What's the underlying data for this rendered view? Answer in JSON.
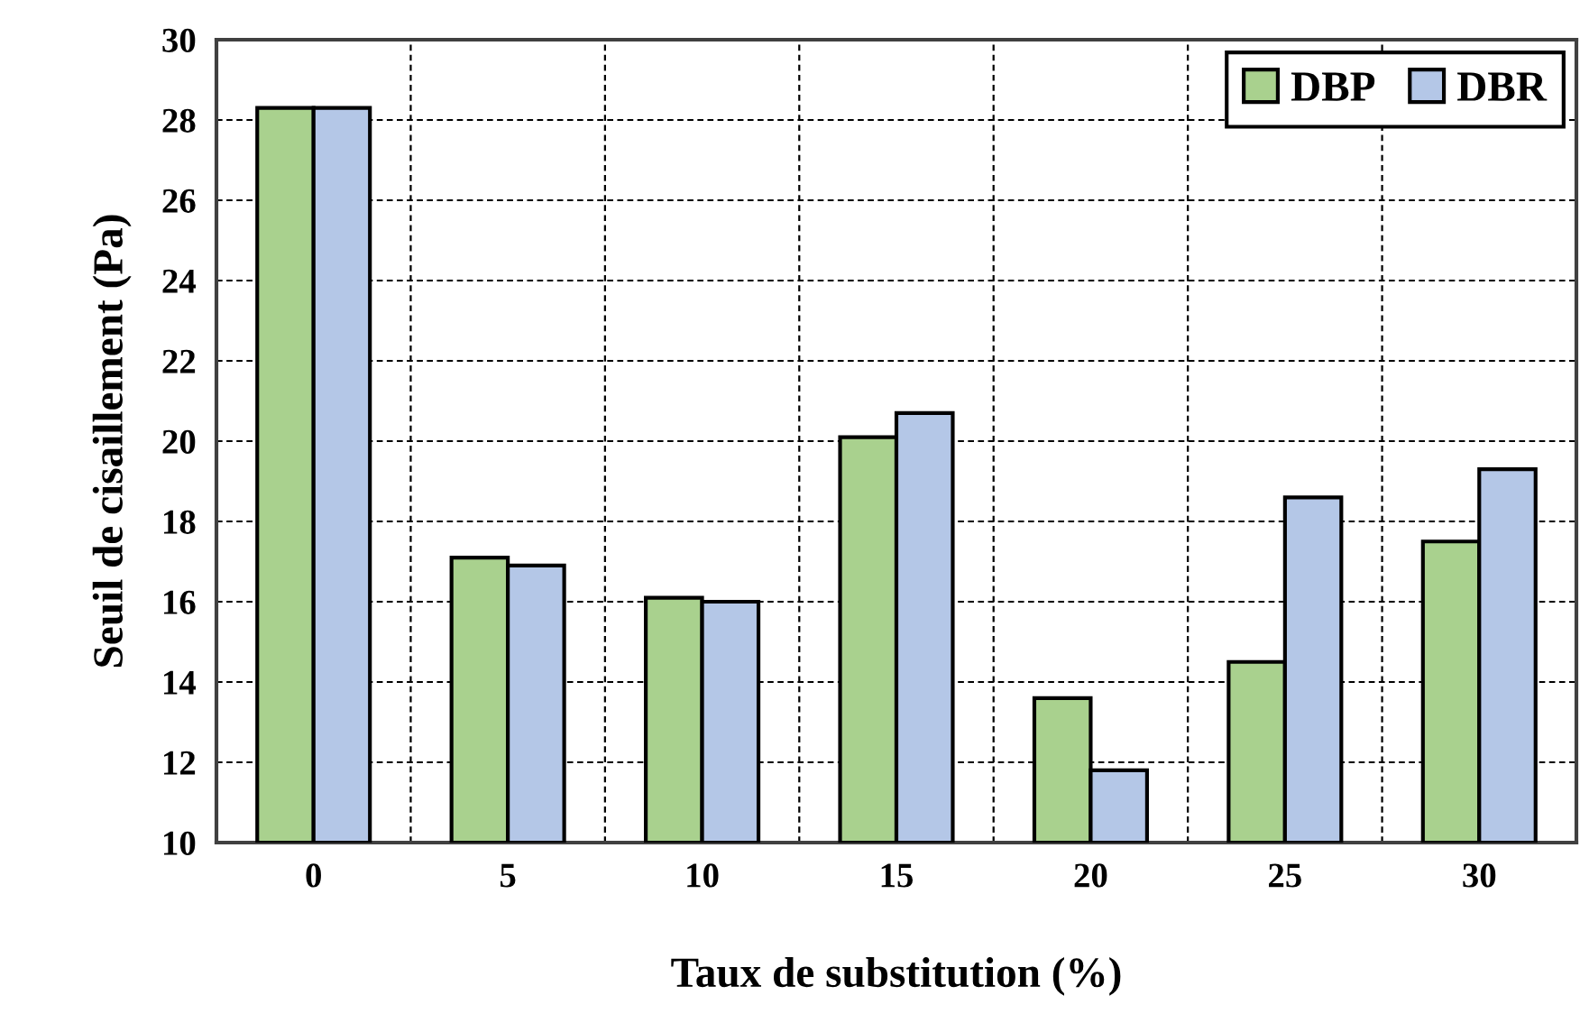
{
  "chart_data": {
    "type": "bar",
    "xlabel": "Taux de substitution (%)",
    "ylabel": "Seuil de cisaillement (Pa)",
    "categories": [
      "0",
      "5",
      "10",
      "15",
      "20",
      "25",
      "30"
    ],
    "series": [
      {
        "name": "DBP",
        "color": "#a9d18e",
        "values": [
          28.3,
          17.1,
          16.1,
          20.1,
          13.6,
          14.5,
          17.5
        ]
      },
      {
        "name": "DBR",
        "color": "#b4c7e7",
        "values": [
          28.3,
          16.9,
          16.0,
          20.7,
          11.8,
          18.6,
          19.3
        ]
      }
    ],
    "ylim": [
      10,
      30
    ],
    "yticks": [
      10,
      12,
      14,
      16,
      18,
      20,
      22,
      24,
      26,
      28,
      30
    ],
    "grid": true,
    "legend": "top right"
  }
}
